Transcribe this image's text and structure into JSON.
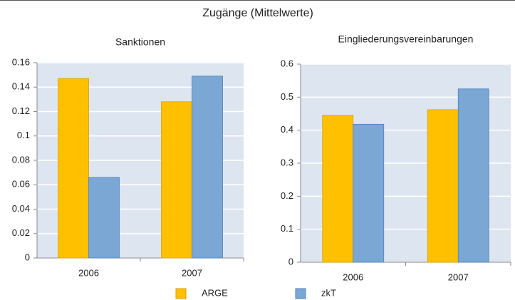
{
  "title": "Zugänge (Mittelwerte)",
  "chart_data": [
    {
      "type": "bar",
      "title": "Sanktionen",
      "categories": [
        "2006",
        "2007"
      ],
      "series": [
        {
          "name": "ARGE",
          "color": "#ffc000",
          "values": [
            0.147,
            0.128
          ]
        },
        {
          "name": "zkT",
          "color": "#7aa7d3",
          "values": [
            0.066,
            0.149
          ]
        }
      ],
      "ylim": [
        0,
        0.16
      ],
      "yticks": [
        0,
        0.02,
        0.04,
        0.06,
        0.08,
        0.1,
        0.12,
        0.14,
        0.16
      ],
      "grid": true
    },
    {
      "type": "bar",
      "title": "Eingliederungsvereinbarungen",
      "categories": [
        "2006",
        "2007"
      ],
      "series": [
        {
          "name": "ARGE",
          "color": "#ffc000",
          "values": [
            0.445,
            0.462
          ]
        },
        {
          "name": "zkT",
          "color": "#7aa7d3",
          "values": [
            0.418,
            0.525
          ]
        }
      ],
      "ylim": [
        0,
        0.6
      ],
      "yticks": [
        0,
        0.1,
        0.2,
        0.3,
        0.4,
        0.5,
        0.6
      ],
      "grid": true
    }
  ]
}
